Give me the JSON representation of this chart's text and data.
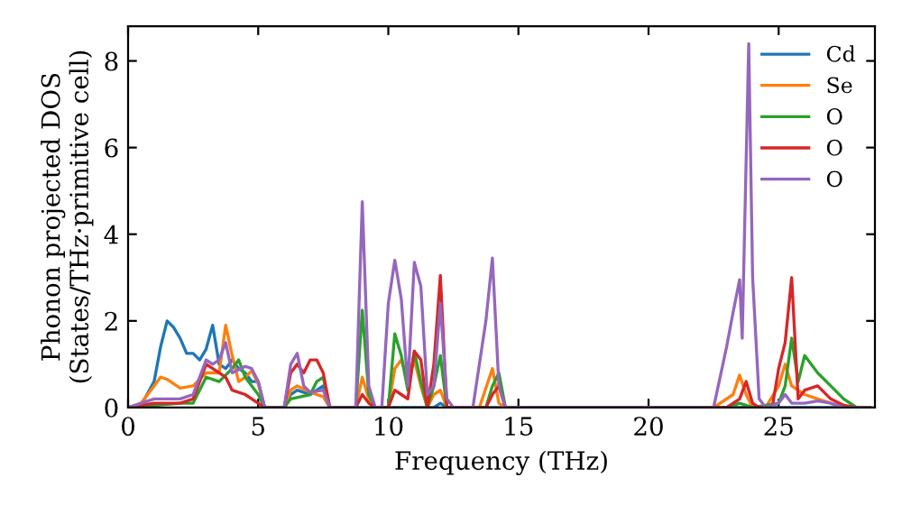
{
  "chart_data": {
    "type": "line",
    "xlabel": "Frequency (THz)",
    "ylabel": "Phonon projected DOS\n(States/THz·primitive cell)",
    "xlim": [
      0,
      28.7
    ],
    "ylim": [
      0,
      8.8
    ],
    "xticks": [
      0,
      5,
      10,
      15,
      20,
      25
    ],
    "yticks": [
      0,
      2,
      4,
      6,
      8
    ],
    "grid": false,
    "legend": "top right",
    "marker": "none",
    "line_style": "solid",
    "series": [
      {
        "name": "Cd",
        "color": "#1f77b4",
        "x": [
          0,
          0.5,
          1,
          1.25,
          1.5,
          1.75,
          2,
          2.25,
          2.5,
          2.75,
          3,
          3.25,
          3.5,
          3.75,
          4,
          4.25,
          4.5,
          4.75,
          5,
          5.25,
          6,
          6.25,
          6.5,
          7,
          7.5,
          7.75,
          11.75,
          12,
          12.25,
          28.5
        ],
        "values": [
          0,
          0.05,
          0.6,
          1.4,
          2.0,
          1.85,
          1.6,
          1.25,
          1.25,
          1.1,
          1.35,
          1.9,
          1.0,
          0.9,
          1.1,
          0.9,
          0.8,
          0.6,
          0.6,
          0,
          0,
          0.3,
          0.4,
          0.3,
          0.5,
          0,
          0,
          0.1,
          0,
          0
        ]
      },
      {
        "name": "Se",
        "color": "#ff7f0e",
        "x": [
          0,
          0.5,
          1,
          1.25,
          1.5,
          2,
          2.5,
          3,
          3.5,
          3.75,
          4,
          4.25,
          4.5,
          4.75,
          5,
          5.25,
          6,
          6.25,
          6.5,
          7,
          7.5,
          7.75,
          8.75,
          9,
          9.25,
          9.5,
          10,
          10.25,
          10.5,
          10.75,
          11,
          11.25,
          11.5,
          11.75,
          12,
          12.25,
          13.5,
          14,
          14.25,
          14.5,
          22.5,
          23.25,
          23.5,
          23.75,
          24,
          24.5,
          25,
          25.25,
          25.5,
          26,
          26.5,
          27,
          27.5,
          28.5
        ],
        "values": [
          0,
          0.1,
          0.5,
          0.7,
          0.65,
          0.45,
          0.5,
          0.8,
          0.8,
          1.9,
          1.2,
          0.6,
          0.7,
          0.85,
          0.55,
          0,
          0,
          0.4,
          0.5,
          0.35,
          0.25,
          0,
          0,
          0.7,
          0.2,
          0,
          0,
          0.9,
          1.1,
          0.6,
          1.1,
          0.5,
          0,
          0.3,
          0.4,
          0,
          0,
          0.9,
          0.1,
          0,
          0,
          0.3,
          0.75,
          0.3,
          0,
          0,
          0.5,
          1.0,
          0.5,
          0.3,
          0.2,
          0.1,
          0,
          0
        ]
      },
      {
        "name": "O",
        "color": "#2ca02c",
        "x": [
          0,
          1,
          2,
          2.5,
          3,
          3.5,
          4,
          4.25,
          4.5,
          5,
          5.25,
          6,
          6.25,
          7,
          7.25,
          7.5,
          7.75,
          8.75,
          9,
          9.25,
          9.5,
          10,
          10.25,
          10.5,
          10.75,
          11,
          11.25,
          11.5,
          11.75,
          12,
          12.25,
          13.75,
          14,
          14.25,
          14.5,
          23,
          23.5,
          24,
          25,
          25.25,
          25.5,
          25.75,
          26,
          26.5,
          27,
          27.5,
          28,
          28.5
        ],
        "values": [
          0,
          0.05,
          0.1,
          0.1,
          0.7,
          0.6,
          0.9,
          1.1,
          0.7,
          0.3,
          0,
          0,
          0.2,
          0.3,
          0.6,
          0.7,
          0,
          0,
          2.25,
          0.3,
          0,
          0,
          1.7,
          1.2,
          0.4,
          1.3,
          0.6,
          0,
          0.5,
          1.2,
          0,
          0,
          0.5,
          0.8,
          0,
          0,
          0.1,
          0,
          0.1,
          0.5,
          1.6,
          0.6,
          1.2,
          0.8,
          0.5,
          0.2,
          0,
          0
        ]
      },
      {
        "name": "O",
        "color": "#d62728",
        "x": [
          0,
          1,
          2,
          2.5,
          3,
          3.25,
          3.5,
          3.75,
          4,
          4.5,
          5,
          5.25,
          6,
          6.25,
          6.5,
          6.75,
          7,
          7.25,
          7.5,
          7.75,
          8.75,
          9,
          9.25,
          9.5,
          10,
          10.25,
          10.5,
          10.75,
          11,
          11.25,
          11.5,
          11.75,
          12,
          12.25,
          13.75,
          14,
          14.25,
          14.5,
          23,
          23.5,
          23.75,
          24,
          24.25,
          24.75,
          25,
          25.25,
          25.5,
          25.75,
          26,
          26.5,
          27,
          27.5,
          28,
          28.5
        ],
        "values": [
          0,
          0.1,
          0.1,
          0.2,
          1.0,
          0.9,
          0.8,
          0.7,
          0.4,
          0.3,
          0.1,
          0,
          0,
          0.8,
          1.0,
          0.8,
          1.1,
          1.1,
          0.8,
          0,
          0,
          0.3,
          0.1,
          0,
          0,
          0.4,
          0.3,
          0.2,
          1.3,
          1.1,
          0,
          1.0,
          3.05,
          0,
          0,
          0.3,
          0.5,
          0,
          0,
          0.2,
          0.6,
          0.1,
          0,
          0,
          0.9,
          1.5,
          3.0,
          0.2,
          0.4,
          0.5,
          0.2,
          0.05,
          0,
          0
        ]
      },
      {
        "name": "O",
        "color": "#9467bd",
        "x": [
          0,
          1,
          2,
          2.5,
          3,
          3.25,
          3.5,
          3.75,
          4,
          4.5,
          4.75,
          5,
          5.25,
          6,
          6.25,
          6.5,
          6.75,
          7,
          7.5,
          7.75,
          8.75,
          9,
          9.25,
          9.5,
          9.75,
          10,
          10.25,
          10.5,
          10.75,
          11,
          11.25,
          11.5,
          11.75,
          12,
          12.25,
          12.5,
          13.25,
          13.75,
          14,
          14.25,
          14.5,
          22.5,
          22.75,
          23,
          23.25,
          23.5,
          23.6,
          23.85,
          24,
          24.25,
          24.5,
          25,
          25.25,
          25.5,
          26,
          26.5,
          27,
          27.5,
          28.5
        ],
        "values": [
          0,
          0.2,
          0.2,
          0.3,
          1.1,
          1.0,
          1.1,
          1.5,
          0.8,
          0.95,
          0.9,
          0.6,
          0,
          0,
          1.0,
          1.25,
          0.5,
          0.35,
          0.4,
          0,
          0,
          4.75,
          0.5,
          0,
          0,
          2.4,
          3.4,
          2.5,
          0.5,
          3.35,
          2.8,
          0.3,
          0.5,
          2.4,
          0.2,
          0,
          0,
          2.0,
          3.45,
          0.5,
          0,
          0,
          0.7,
          1.4,
          2.2,
          2.95,
          1.6,
          8.4,
          3.0,
          0.2,
          0,
          0.1,
          0.3,
          0.1,
          0.1,
          0.15,
          0.1,
          0,
          0
        ]
      }
    ]
  }
}
